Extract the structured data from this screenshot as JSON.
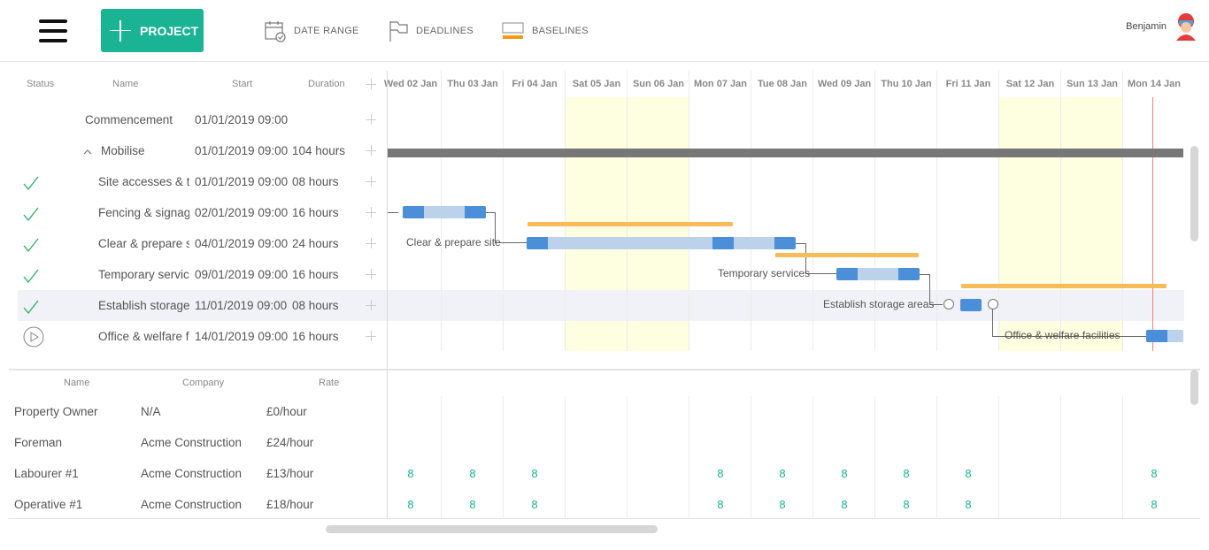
{
  "toolbar": {
    "project_label": "PROJECT",
    "date_range_label": "DATE RANGE",
    "deadlines_label": "DEADLINES",
    "baselines_label": "BASELINES",
    "user_name": "Benjamin"
  },
  "grid": {
    "columns": {
      "status": "Status",
      "name": "Name",
      "start": "Start",
      "duration": "Duration"
    },
    "days": [
      "Wed 02 Jan",
      "Thu 03 Jan",
      "Fri 04 Jan",
      "Sat 05 Jan",
      "Sun 06 Jan",
      "Mon 07 Jan",
      "Tue 08 Jan",
      "Wed 09 Jan",
      "Thu 10 Jan",
      "Fri 11 Jan",
      "Sat 12 Jan",
      "Sun 13 Jan",
      "Mon 14 Jan"
    ],
    "tasks": [
      {
        "name": "Commencement",
        "start": "01/01/2019 09:00",
        "duration": ""
      },
      {
        "name": "Mobilise",
        "start": "01/01/2019 09:00",
        "duration": "104 hours"
      },
      {
        "name": "Site accesses & tr",
        "start": "01/01/2019 09:00",
        "duration": "08 hours"
      },
      {
        "name": "Fencing & signage",
        "start": "02/01/2019 09:00",
        "duration": "16 hours"
      },
      {
        "name": "Clear & prepare si",
        "start": "04/01/2019 09:00",
        "duration": "24 hours"
      },
      {
        "name": "Temporary services",
        "start": "09/01/2019 09:00",
        "duration": "16 hours"
      },
      {
        "name": "Establish storage",
        "start": "11/01/2019 09:00",
        "duration": "08 hours"
      },
      {
        "name": "Office & welfare fa",
        "start": "14/01/2019 09:00",
        "duration": "16 hours"
      }
    ],
    "bar_labels": {
      "clear": "Clear & prepare site",
      "temporary": "Temporary services",
      "storage": "Establish storage areas",
      "office": "Office & welfare facilities"
    }
  },
  "resources": {
    "columns": {
      "name": "Name",
      "company": "Company",
      "rate": "Rate"
    },
    "rows": [
      {
        "name": "Property Owner",
        "company": "N/A",
        "rate": "£0/hour",
        "hours": [
          "",
          "",
          "",
          "",
          "",
          "",
          "",
          "",
          "",
          "",
          "",
          "",
          ""
        ]
      },
      {
        "name": "Foreman",
        "company": "Acme Construction",
        "rate": "£24/hour",
        "hours": [
          "",
          "",
          "",
          "",
          "",
          "",
          "",
          "",
          "",
          "",
          "",
          "",
          ""
        ]
      },
      {
        "name": "Labourer #1",
        "company": "Acme Construction",
        "rate": "£13/hour",
        "hours": [
          "8",
          "8",
          "8",
          "",
          "",
          "8",
          "8",
          "8",
          "8",
          "8",
          "",
          "",
          "8"
        ]
      },
      {
        "name": "Operative #1",
        "company": "Acme Construction",
        "rate": "£18/hour",
        "hours": [
          "8",
          "8",
          "8",
          "",
          "",
          "8",
          "8",
          "8",
          "8",
          "8",
          "",
          "",
          "8"
        ]
      }
    ]
  },
  "colors": {
    "accent": "#1ab394",
    "bar": "#4a8fd8",
    "bar_light": "#bcd1ea",
    "baseline": "#f8bb5a",
    "weekend": "#fefee0",
    "today": "#f08080"
  }
}
